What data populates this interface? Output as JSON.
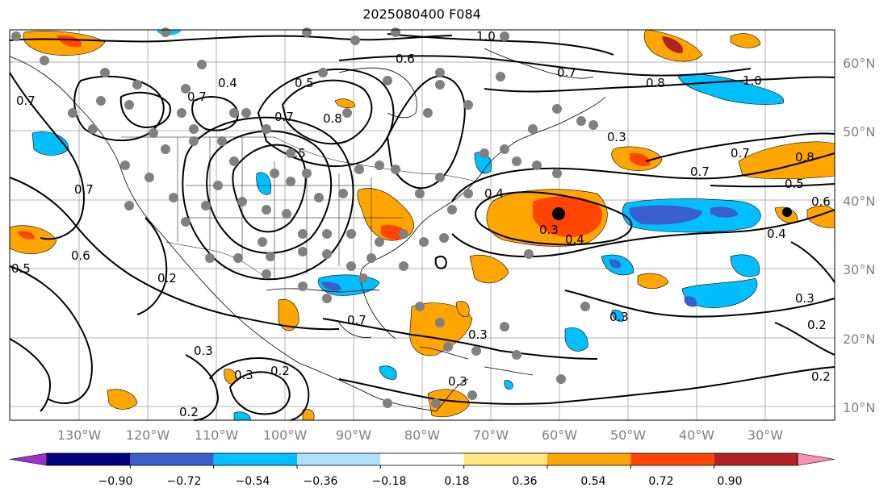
{
  "title": "2025080400 F084",
  "latitude_labels": [
    "60°N",
    "50°N",
    "40°N",
    "30°N",
    "20°N",
    "10°N"
  ],
  "longitude_labels": [
    "130°W",
    "120°W",
    "110°W",
    "100°W",
    "90°W",
    "80°W",
    "70°W",
    "60°W",
    "50°W",
    "40°W",
    "30°W"
  ],
  "colorbar": {
    "tick_labels": [
      "−0.90",
      "−0.72",
      "−0.54",
      "−0.36",
      "−0.18",
      "0.18",
      "0.36",
      "0.54",
      "0.72",
      "0.90"
    ],
    "colors": [
      "#9932cc",
      "#000080",
      "#3a5fcd",
      "#00bfff",
      "#b0e0ff",
      "#ffffff",
      "#ffe680",
      "#ffa500",
      "#ff4500",
      "#b22222",
      "#ff8fb4"
    ],
    "extend": "both"
  },
  "contour_labels": [
    "0.4",
    "0.5",
    "0.6",
    "0.7",
    "0.8",
    "1.0",
    "0.3",
    "0.2"
  ],
  "colors": {
    "contour": "#000000",
    "grid": "#b0b0b0",
    "station_marker": "#808080",
    "axis_label": "#808080"
  }
}
